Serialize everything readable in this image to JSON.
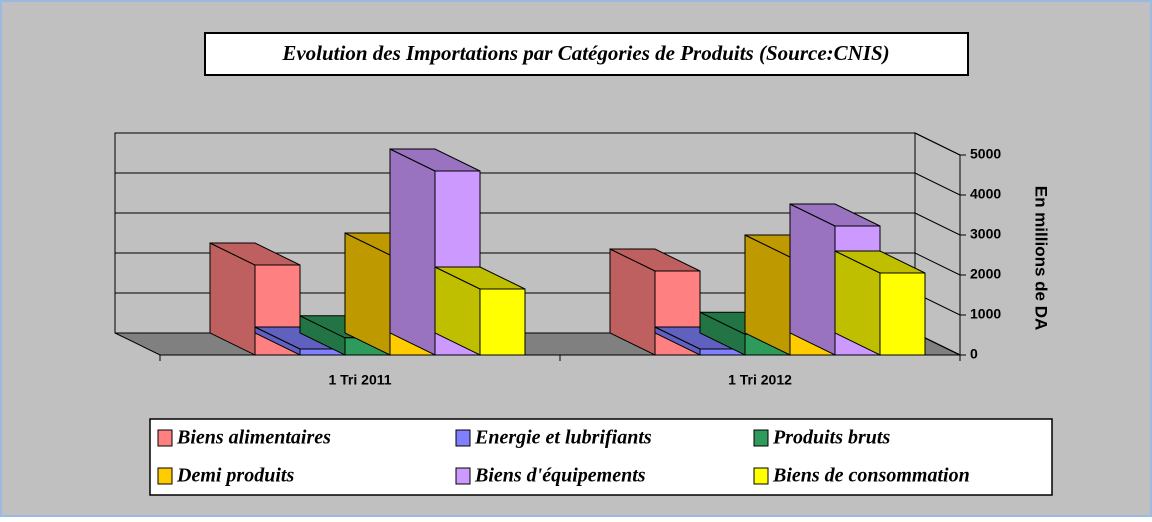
{
  "chart_data": {
    "type": "bar3d",
    "title": "Evolution des Importations par Catégories de Produits (Source:CNIS)",
    "y_axis_label": "En millions de DA",
    "categories": [
      "1 Tri 2011",
      "1 Tri 2012"
    ],
    "series": [
      {
        "name": "Biens alimentaires",
        "color": "#ff8080",
        "values": [
          2250,
          2100
        ]
      },
      {
        "name": "Energie et lubrifiants",
        "color": "#8080ff",
        "values": [
          150,
          150
        ]
      },
      {
        "name": "Produits bruts",
        "color": "#2e9a5c",
        "values": [
          430,
          520
        ]
      },
      {
        "name": "Demi produits",
        "color": "#ffcc00",
        "values": [
          2500,
          2450
        ]
      },
      {
        "name": "Biens d'équipements",
        "color": "#cc99ff",
        "values": [
          4600,
          3225
        ]
      },
      {
        "name": "Biens de consommation",
        "color": "#ffff00",
        "values": [
          1650,
          2050
        ]
      }
    ],
    "ylim": [
      0,
      5000
    ],
    "yticks": [
      0,
      1000,
      2000,
      3000,
      4000,
      5000
    ],
    "grid": true,
    "legend": "bottom"
  }
}
